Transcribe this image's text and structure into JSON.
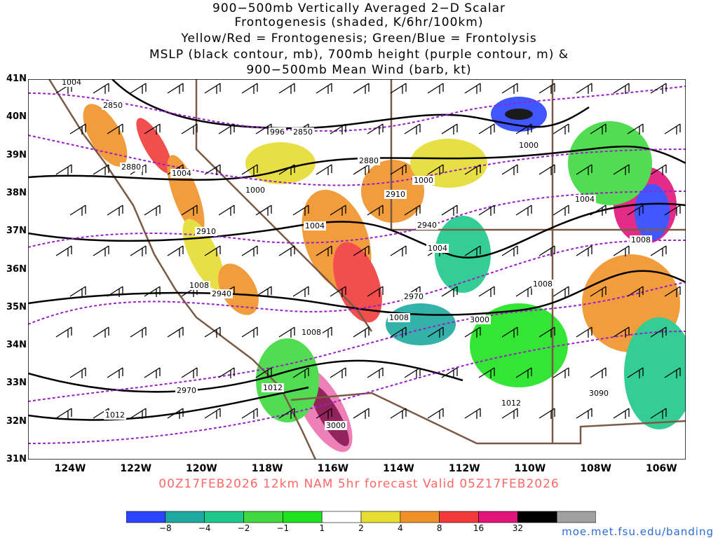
{
  "title": {
    "line1": "900−500mb Vertically Averaged 2−D Scalar",
    "line2": "Frontogenesis (shaded, K/6hr/100km)",
    "line3": "Yellow/Red = Frontogenesis;  Green/Blue = Frontolysis",
    "line4": "MSLP (black contour, mb), 700mb height (purple contour, m) &",
    "line5": "900−500mb Mean Wind (barb, kt)"
  },
  "lat_ticks": [
    "41N",
    "40N",
    "39N",
    "38N",
    "37N",
    "36N",
    "35N",
    "34N",
    "33N",
    "32N",
    "31N"
  ],
  "lon_ticks": [
    "124W",
    "122W",
    "120W",
    "118W",
    "116W",
    "114W",
    "112W",
    "110W",
    "108W",
    "106W"
  ],
  "mslp_labels": [
    "1004",
    "996",
    "1000",
    "1004",
    "1004",
    "1008",
    "1008",
    "1012",
    "1012",
    "1000",
    "1004",
    "1008",
    "1008",
    "1012",
    "1000",
    "1008",
    "1004"
  ],
  "height_labels": [
    "2850",
    "2850",
    "2880",
    "2910",
    "2940",
    "2970",
    "2970",
    "2880",
    "2910",
    "2940",
    "3000",
    "3090",
    "3000"
  ],
  "forecast": "00Z17FEB2026 12km NAM 5hr forecast Valid 05Z17FEB2026",
  "colorbar": {
    "labels": [
      "−8",
      "−4",
      "−2",
      "−1",
      "1",
      "2",
      "4",
      "8",
      "16",
      "32"
    ],
    "colors": [
      "#2b44ff",
      "#1ea9a0",
      "#1ec88a",
      "#3fd93f",
      "#1fe31f",
      "#ffffff",
      "#e6dc32",
      "#f09128",
      "#f23a3a",
      "#e0147a",
      "#000000",
      "#a0a0a0"
    ]
  },
  "credit": "moe.met.fsu.edu/banding",
  "colors": {
    "mslp": "#000000",
    "height": "#9a21c8",
    "border": "#7a5a44",
    "forecast": "#ff6666",
    "credit": "#2b6ad8"
  }
}
